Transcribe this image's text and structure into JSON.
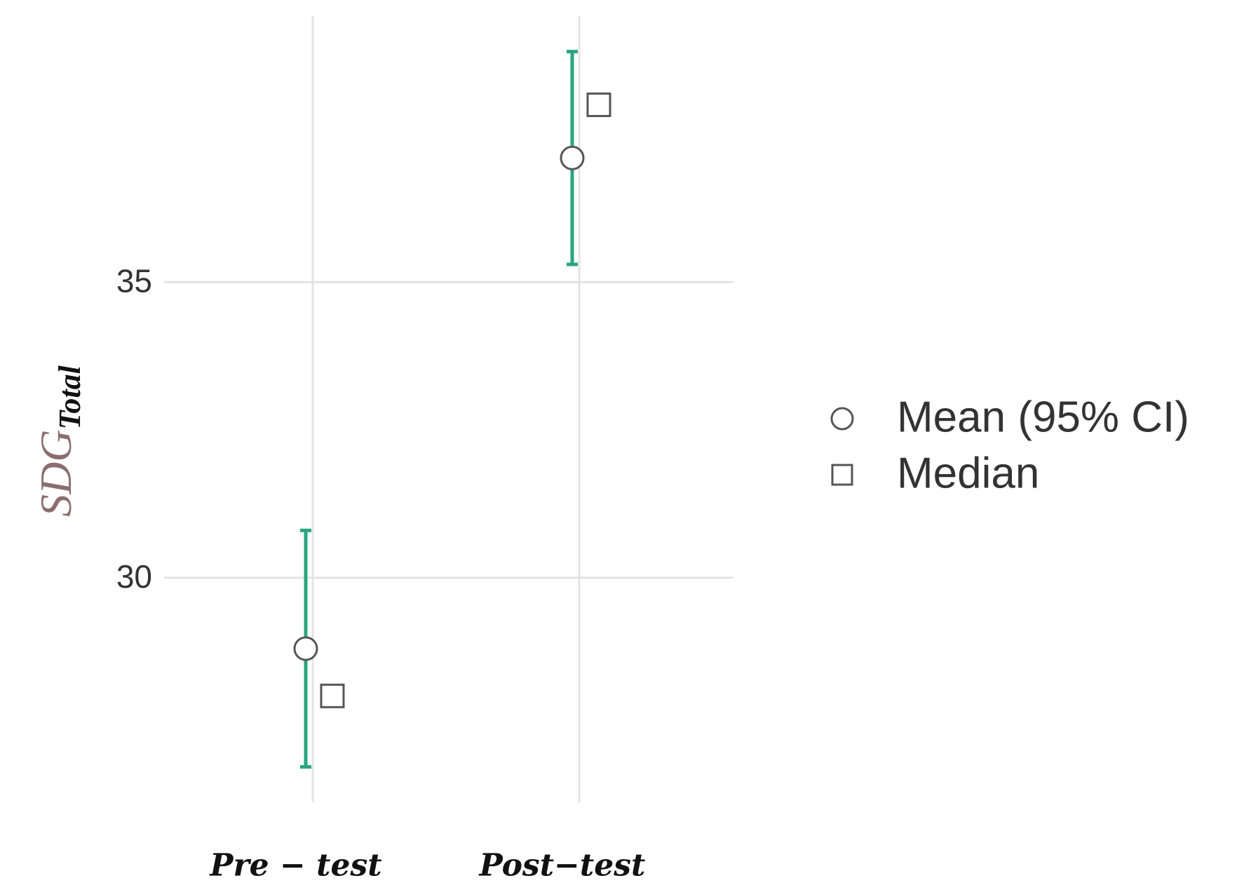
{
  "chart_data": {
    "type": "pointrange",
    "ylabel": {
      "main": "SDG",
      "subscript": "Total"
    },
    "categories": [
      "Pre − test",
      "Post−test"
    ],
    "series": [
      {
        "name": "Mean (95% CI)",
        "shape": "circle",
        "color": "#555555",
        "error_color": "#2aa57e",
        "values": [
          28.8,
          37.1
        ],
        "ci_lower": [
          26.8,
          35.3
        ],
        "ci_upper": [
          30.8,
          38.9
        ]
      },
      {
        "name": "Median",
        "shape": "square",
        "color": "#555555",
        "values": [
          28,
          38
        ]
      }
    ],
    "ylim": [
      26.2,
      39.5
    ],
    "yticks": [
      30,
      35
    ],
    "grid": true,
    "legend": "right"
  }
}
